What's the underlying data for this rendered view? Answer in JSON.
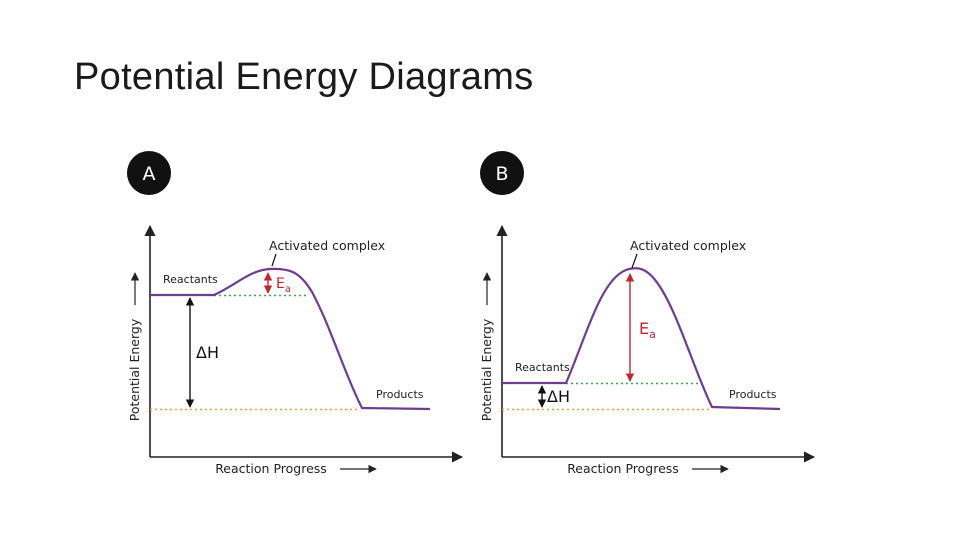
{
  "slide": {
    "title": "Potential Energy Diagrams"
  },
  "colors": {
    "curve": "#6e3d91",
    "activation_arrow": "#c0272d",
    "enthalpy_arrow": "#111111",
    "green_dotted": "#3aa64a",
    "orange_dotted": "#f0a22b",
    "axis": "#222222",
    "badge": "#111111"
  },
  "diagrams": [
    {
      "badge": "A",
      "activated_complex_label": "Activated complex",
      "reactants_label": "Reactants",
      "products_label": "Products",
      "ea_label": "E",
      "ea_subscript": "a",
      "delta_h_label": "ΔH",
      "y_axis_label": "Potential Energy",
      "x_axis_label": "Reaction Progress"
    },
    {
      "badge": "B",
      "activated_complex_label": "Activated complex",
      "reactants_label": "Reactants",
      "products_label": "Products",
      "ea_label": "E",
      "ea_subscript": "a",
      "delta_h_label": "ΔH",
      "y_axis_label": "Potential Energy",
      "x_axis_label": "Reaction Progress"
    }
  ]
}
